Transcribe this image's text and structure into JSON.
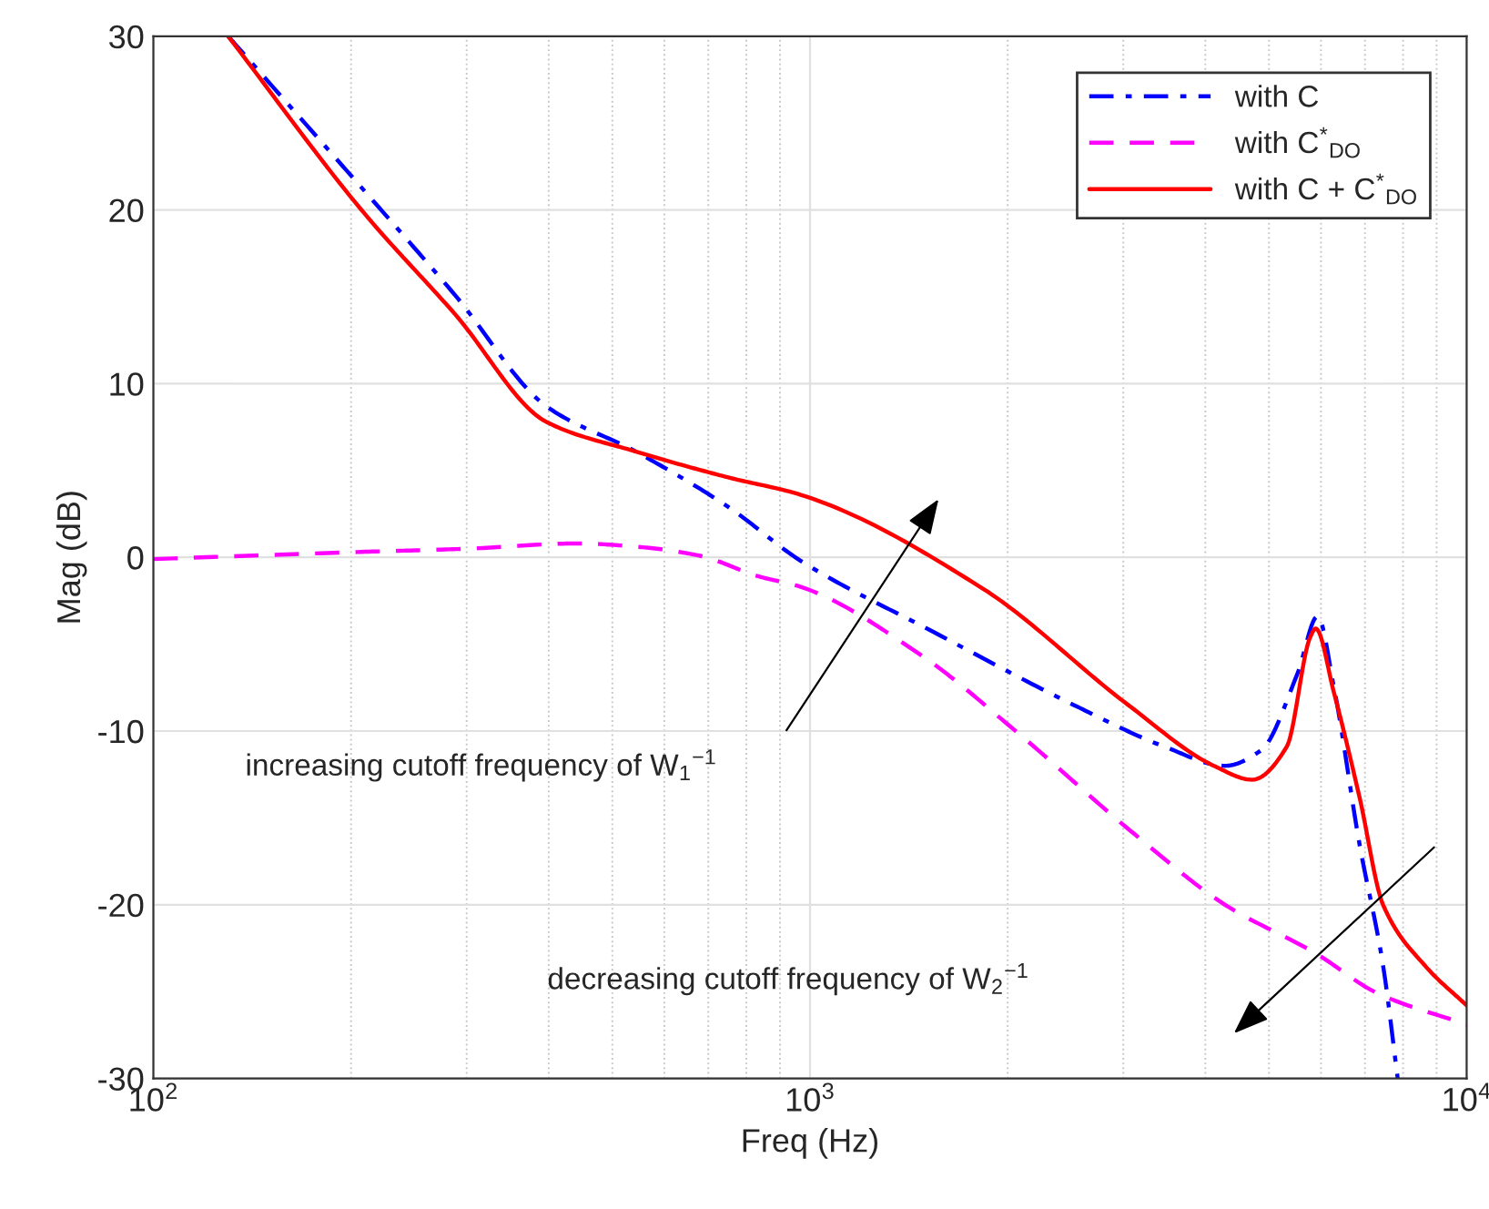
{
  "chart_data": {
    "type": "line",
    "xlabel": "Freq (Hz)",
    "ylabel": "Mag (dB)",
    "log": "x",
    "xlim": [
      100,
      10000
    ],
    "xticks": [
      {
        "value": 100,
        "label": "10$^{2}$"
      },
      {
        "value": 1000,
        "label": "10$^{3}$"
      },
      {
        "value": 10000,
        "label": "10$^{4}$"
      }
    ],
    "ylim": [
      -30,
      30
    ],
    "yticks": [
      -30,
      -20,
      -10,
      0,
      10,
      20,
      30
    ],
    "grid": true,
    "legend": "top right",
    "series": [
      {
        "name": "with C",
        "color": "#0000ff",
        "line_style": "dashdot",
        "x": [
          130,
          209.6,
          288,
          396.7,
          542,
          751,
          968,
          1543,
          2522,
          3467,
          4285,
          4866,
          5524,
          5929,
          6280,
          6867,
          7459,
          7852
        ],
        "values": [
          30,
          21.1,
          15.1,
          8.7,
          6.1,
          2.9,
          -0.2,
          -4.3,
          -8.5,
          -10.9,
          -12.0,
          -11.1,
          -6.7,
          -3.4,
          -7.5,
          -16.5,
          -23.5,
          -30
        ]
      },
      {
        "name": "with C$^{*}$$_{DO}$",
        "color": "#ff00ff",
        "line_style": "dashed",
        "x": [
          100,
          201.7,
          301.5,
          442,
          549,
          678,
          836,
          968,
          1485,
          2042,
          3112,
          4285,
          5890,
          7318,
          10000
        ],
        "values": [
          -0.1,
          0.3,
          0.5,
          0.8,
          0.6,
          0.1,
          -1.1,
          -1.7,
          -5.7,
          -9.9,
          -15.9,
          -20.0,
          -22.8,
          -25.1,
          -26.9
        ]
      },
      {
        "name": "with C + C$^{*}$$_{DO}$",
        "color": "#ff0000",
        "line_style": "solid",
        "x": [
          130,
          209.6,
          288,
          396.7,
          542,
          751,
          968,
          1833,
          3052,
          4121,
          4713,
          5321,
          5777,
          5890,
          6280,
          6867,
          7459,
          8636,
          10000
        ],
        "values": [
          30,
          19.8,
          14.0,
          7.8,
          6.1,
          4.6,
          3.6,
          -1.8,
          -8.5,
          -12.0,
          -12.8,
          -10.9,
          -4.6,
          -4.1,
          -7.8,
          -13.8,
          -20.0,
          -23.5,
          -25.8
        ]
      }
    ],
    "annotations": [
      "increasing cutoff frequency of W$_{1}$$^{−1}$",
      "decreasing cutoff frequency of W$_{2}$$^{−1}$"
    ]
  }
}
